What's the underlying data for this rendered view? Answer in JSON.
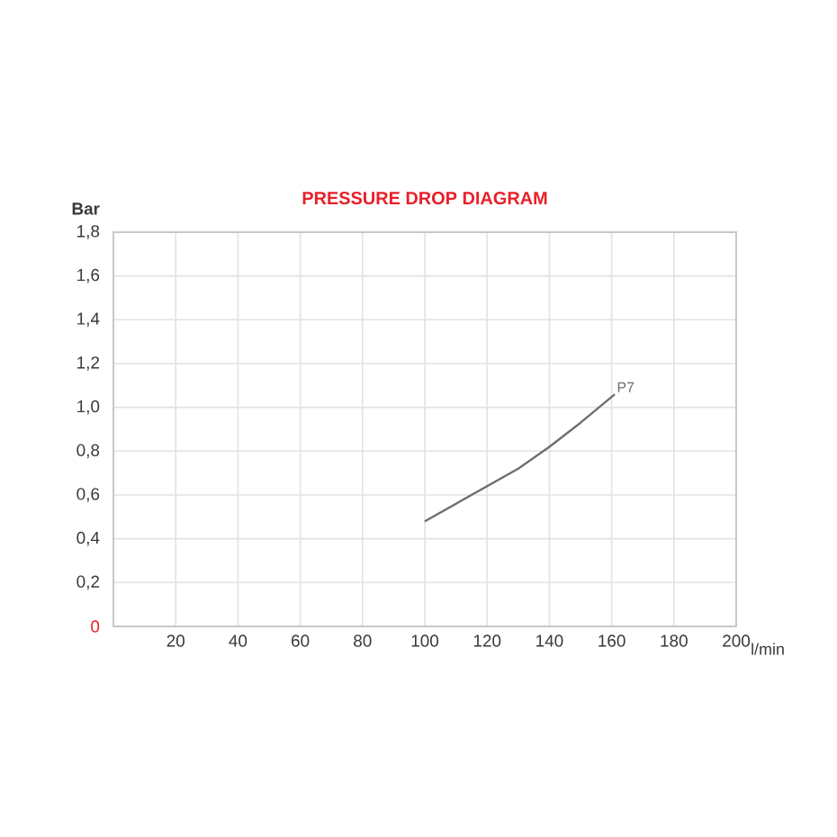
{
  "chart_data": {
    "type": "line",
    "title": "PRESSURE DROP DIAGRAM",
    "xlabel": "l/min",
    "ylabel": "Bar",
    "xlim": [
      0,
      200
    ],
    "ylim": [
      0,
      1.8
    ],
    "xticks": [
      20,
      40,
      60,
      80,
      100,
      120,
      140,
      160,
      180,
      200
    ],
    "yticks": [
      {
        "value": 0,
        "label": "0"
      },
      {
        "value": 0.2,
        "label": "0,2"
      },
      {
        "value": 0.4,
        "label": "0,4"
      },
      {
        "value": 0.6,
        "label": "0,6"
      },
      {
        "value": 0.8,
        "label": "0,8"
      },
      {
        "value": 1.0,
        "label": "1,0"
      },
      {
        "value": 1.2,
        "label": "1,2"
      },
      {
        "value": 1.4,
        "label": "1,4"
      },
      {
        "value": 1.6,
        "label": "1,6"
      },
      {
        "value": 1.8,
        "label": "1,8"
      }
    ],
    "grid": true,
    "series": [
      {
        "name": "P7",
        "color": "#6e6e6e",
        "x": [
          100,
          110,
          120,
          130,
          140,
          150,
          161
        ],
        "values": [
          0.48,
          0.56,
          0.64,
          0.72,
          0.82,
          0.93,
          1.06
        ]
      }
    ]
  }
}
